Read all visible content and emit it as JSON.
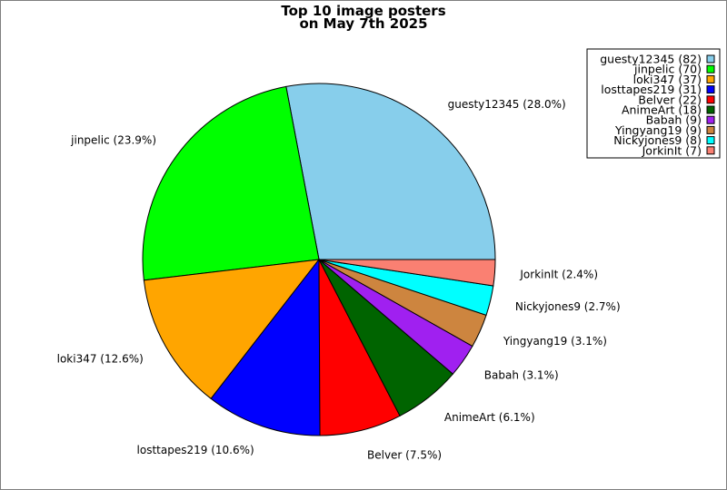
{
  "chart_data": {
    "type": "pie",
    "title": [
      "Top 10 image posters",
      "on May 7th 2025"
    ],
    "legend_position": "top-right",
    "slices": [
      {
        "name": "guesty12345",
        "count": 82,
        "percent_label": "28.0%",
        "color": "#87ceeb"
      },
      {
        "name": "jinpelic",
        "count": 70,
        "percent_label": "23.9%",
        "color": "#00ff00"
      },
      {
        "name": "loki347",
        "count": 37,
        "percent_label": "12.6%",
        "color": "#ffa500"
      },
      {
        "name": "losttapes219",
        "count": 31,
        "percent_label": "10.6%",
        "color": "#0000ff"
      },
      {
        "name": "Belver",
        "count": 22,
        "percent_label": "7.5%",
        "color": "#ff0000"
      },
      {
        "name": "AnimeArt",
        "count": 18,
        "percent_label": "6.1%",
        "color": "#006400"
      },
      {
        "name": "Babah",
        "count": 9,
        "percent_label": "3.1%",
        "color": "#a020f0"
      },
      {
        "name": "Yingyang19",
        "count": 9,
        "percent_label": "3.1%",
        "color": "#cd853f"
      },
      {
        "name": "Nickyjones9",
        "count": 8,
        "percent_label": "2.7%",
        "color": "#00ffff"
      },
      {
        "name": "JorkinIt",
        "count": 7,
        "percent_label": "2.4%",
        "color": "#fa8072"
      }
    ]
  }
}
